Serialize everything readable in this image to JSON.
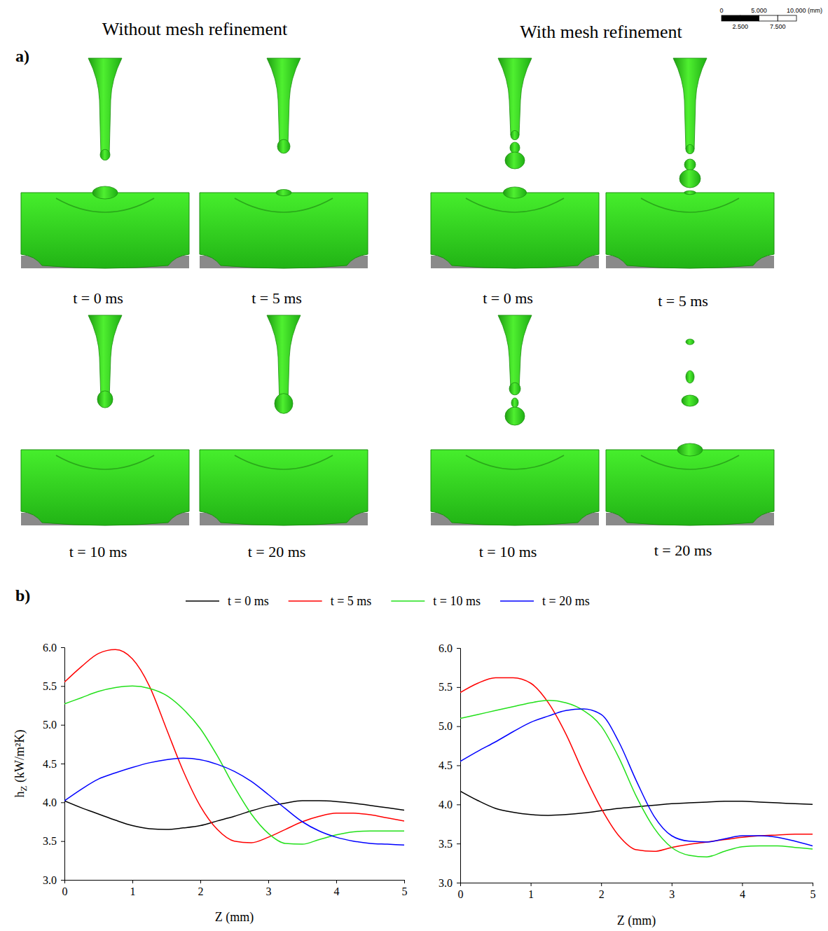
{
  "panel_a": {
    "label": "a)",
    "columns": [
      {
        "title": "Without mesh refinement",
        "frames": [
          "t = 0 ms",
          "t = 5 ms",
          "t = 10 ms",
          "t = 20 ms"
        ]
      },
      {
        "title": "With mesh refinement",
        "frames": [
          "t = 0 ms",
          "t = 5 ms",
          "t = 10 ms",
          "t = 20 ms"
        ]
      }
    ],
    "scale_bar": {
      "top_labels": [
        "0",
        "5.000",
        "10.000 (mm)"
      ],
      "bottom_labels": [
        "2.500",
        "7.500"
      ]
    }
  },
  "panel_b": {
    "label": "b)"
  },
  "chart_data": [
    {
      "type": "line",
      "x_label": "Z (mm)",
      "y_label": "hZ (kW/m²K)",
      "x": [
        0,
        0.25,
        0.5,
        0.75,
        1,
        1.25,
        1.5,
        1.75,
        2,
        2.25,
        2.5,
        2.75,
        3,
        3.25,
        3.5,
        3.75,
        4,
        4.25,
        4.5,
        4.75,
        5
      ],
      "xlim": [
        0,
        5
      ],
      "xticks": [
        0,
        1,
        2,
        3,
        4,
        5
      ],
      "ylim": [
        3,
        6
      ],
      "yticks": [
        {
          "value": 3,
          "label": "3.0"
        },
        {
          "value": 3.5,
          "label": "3.5"
        },
        {
          "value": 4,
          "label": "4.0"
        },
        {
          "value": 4.5,
          "label": "4.5"
        },
        {
          "value": 5,
          "label": "5.0"
        },
        {
          "value": 5.5,
          "label": "5.5"
        },
        {
          "value": 6,
          "label": "6.0"
        }
      ],
      "series": [
        {
          "name": "t = 0 ms",
          "color": "#000000",
          "values": [
            4.02,
            3.93,
            3.85,
            3.77,
            3.7,
            3.66,
            3.65,
            3.67,
            3.7,
            3.76,
            3.82,
            3.89,
            3.95,
            3.99,
            4.02,
            4.02,
            4.01,
            3.99,
            3.96,
            3.93,
            3.9
          ]
        },
        {
          "name": "t = 5 ms",
          "color": "#ff0000",
          "values": [
            5.55,
            5.75,
            5.92,
            5.97,
            5.85,
            5.5,
            4.95,
            4.4,
            3.95,
            3.65,
            3.5,
            3.48,
            3.55,
            3.65,
            3.75,
            3.82,
            3.86,
            3.86,
            3.84,
            3.8,
            3.76
          ]
        },
        {
          "name": "t = 10 ms",
          "color": "#22e01a",
          "values": [
            5.27,
            5.35,
            5.43,
            5.48,
            5.5,
            5.47,
            5.38,
            5.2,
            4.95,
            4.6,
            4.2,
            3.85,
            3.6,
            3.47,
            3.46,
            3.52,
            3.58,
            3.62,
            3.63,
            3.63,
            3.63
          ]
        },
        {
          "name": "t = 20 ms",
          "color": "#0000ff",
          "values": [
            4.02,
            4.17,
            4.3,
            4.38,
            4.45,
            4.51,
            4.55,
            4.57,
            4.55,
            4.49,
            4.4,
            4.27,
            4.1,
            3.92,
            3.75,
            3.63,
            3.55,
            3.5,
            3.47,
            3.46,
            3.45
          ]
        }
      ]
    },
    {
      "type": "line",
      "x_label": "Z (mm)",
      "x": [
        0,
        0.25,
        0.5,
        0.75,
        1,
        1.25,
        1.5,
        1.75,
        2,
        2.25,
        2.5,
        2.75,
        3,
        3.25,
        3.5,
        3.75,
        4,
        4.25,
        4.5,
        4.75,
        5
      ],
      "xlim": [
        0,
        5
      ],
      "xticks": [
        0,
        1,
        2,
        3,
        4,
        5
      ],
      "ylim": [
        3,
        6
      ],
      "yticks": [
        {
          "value": 3,
          "label": "3.0"
        },
        {
          "value": 3.5,
          "label": "3.5"
        },
        {
          "value": 4,
          "label": "4.0"
        },
        {
          "value": 4.5,
          "label": "4.5"
        },
        {
          "value": 5,
          "label": "5.0"
        },
        {
          "value": 5.5,
          "label": "5.5"
        },
        {
          "value": 6,
          "label": "6.0"
        }
      ],
      "series": [
        {
          "name": "t = 0 ms",
          "color": "#000000",
          "values": [
            4.17,
            4.05,
            3.95,
            3.9,
            3.87,
            3.86,
            3.87,
            3.89,
            3.92,
            3.95,
            3.97,
            3.99,
            4.01,
            4.02,
            4.03,
            4.04,
            4.04,
            4.03,
            4.02,
            4.01,
            4.0
          ]
        },
        {
          "name": "t = 5 ms",
          "color": "#ff0000",
          "values": [
            5.43,
            5.55,
            5.62,
            5.62,
            5.55,
            5.3,
            4.9,
            4.4,
            3.95,
            3.6,
            3.42,
            3.4,
            3.45,
            3.49,
            3.52,
            3.55,
            3.58,
            3.6,
            3.61,
            3.62,
            3.62
          ]
        },
        {
          "name": "t = 10 ms",
          "color": "#22e01a",
          "values": [
            5.1,
            5.15,
            5.2,
            5.25,
            5.3,
            5.33,
            5.3,
            5.2,
            5.0,
            4.6,
            4.1,
            3.7,
            3.45,
            3.35,
            3.33,
            3.4,
            3.46,
            3.47,
            3.47,
            3.45,
            3.43
          ]
        },
        {
          "name": "t = 20 ms",
          "color": "#0000ff",
          "values": [
            4.55,
            4.68,
            4.8,
            4.93,
            5.05,
            5.13,
            5.2,
            5.22,
            5.15,
            4.8,
            4.3,
            3.85,
            3.6,
            3.53,
            3.52,
            3.56,
            3.6,
            3.6,
            3.58,
            3.53,
            3.47
          ]
        }
      ]
    }
  ]
}
